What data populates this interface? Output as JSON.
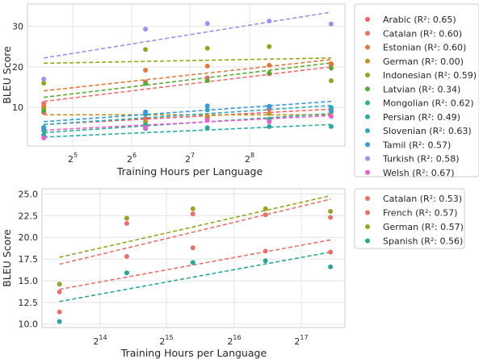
{
  "chart_data": [
    {
      "type": "scatter",
      "xlabel": "Training Hours per Language",
      "ylabel": "BLEU Score",
      "x_scale": "log2",
      "xticks": [
        "2^5",
        "2^6",
        "2^7",
        "2^8"
      ],
      "yticks": [
        10,
        20,
        30
      ],
      "xlim": [
        20,
        700
      ],
      "ylim": [
        0.5,
        35.5
      ],
      "grid": true,
      "legend_position": "outside-right",
      "x": [
        24,
        75,
        150,
        300,
        600
      ],
      "series": [
        {
          "name": "Arabic (R²: 0.65)",
          "color": "#f0606a",
          "values": [
            8.8,
            7.2,
            7.5,
            9.6,
            9.9
          ],
          "fit": [
            5.8,
            9.6
          ]
        },
        {
          "name": "Catalan (R²: 0.60)",
          "color": "#eb6f6a",
          "values": [
            11.0,
            16.3,
            17.3,
            18.3,
            20.5
          ],
          "fit": [
            11.5,
            20.0
          ]
        },
        {
          "name": "Estonian (R²: 0.60)",
          "color": "#e07a3c",
          "values": [
            10.3,
            19.2,
            20.2,
            20.4,
            20.8
          ],
          "fit": [
            14.1,
            21.8
          ]
        },
        {
          "name": "German (R²: 0.00)",
          "color": "#c0922f",
          "values": [
            9.7,
            6.5,
            7.9,
            8.5,
            8.8
          ],
          "fit": [
            8.2,
            8.2
          ]
        },
        {
          "name": "Indonesian (R²: 0.59)",
          "color": "#98a224",
          "values": [
            16.0,
            24.3,
            24.6,
            25.0,
            16.6
          ],
          "fit": [
            20.9,
            22.2
          ]
        },
        {
          "name": "Latvian (R²: 0.34)",
          "color": "#5ca836",
          "values": [
            9.2,
            15.9,
            16.6,
            18.5,
            19.7
          ],
          "fit": [
            12.5,
            21.0
          ]
        },
        {
          "name": "Mongolian (R²: 0.62)",
          "color": "#33ad8c",
          "values": [
            4.3,
            5.8,
            5.0,
            7.1,
            9.2
          ],
          "fit": [
            3.8,
            8.5
          ]
        },
        {
          "name": "Persian (R²: 0.49)",
          "color": "#31a8a2",
          "values": [
            3.2,
            4.8,
            5.0,
            5.3,
            5.3
          ],
          "fit": [
            2.7,
            5.8
          ]
        },
        {
          "name": "Slovenian (R²: 0.63)",
          "color": "#35a6ba",
          "values": [
            5.1,
            8.3,
            9.4,
            10.1,
            10.0
          ],
          "fit": [
            5.8,
            10.5
          ]
        },
        {
          "name": "Tamil (R²: 0.57)",
          "color": "#3a98d8",
          "values": [
            4.8,
            8.9,
            10.4,
            10.3,
            9.1
          ],
          "fit": [
            6.5,
            11.5
          ]
        },
        {
          "name": "Turkish (R²: 0.58)",
          "color": "#a28df0",
          "values": [
            17.0,
            29.3,
            30.7,
            31.3,
            30.6
          ],
          "fit": [
            22.2,
            33.5
          ]
        },
        {
          "name": "Welsh (R²: 0.67)",
          "color": "#e85fd3",
          "values": [
            2.5,
            5.0,
            6.9,
            6.5,
            7.8
          ],
          "fit": [
            4.4,
            8.0
          ]
        }
      ]
    },
    {
      "type": "scatter",
      "xlabel": "Training Hours per Language",
      "ylabel": "BLEU Score",
      "x_scale": "log2",
      "xticks": [
        "2^14",
        "2^15",
        "2^16",
        "2^17"
      ],
      "yticks": [
        10.0,
        12.5,
        15.0,
        17.5,
        20.0,
        22.5,
        25.0
      ],
      "xlim": [
        8300,
        210000
      ],
      "ylim": [
        9.6,
        25.6
      ],
      "grid": true,
      "legend_position": "outside-right",
      "x": [
        10000,
        20500,
        41500,
        90000,
        180000
      ],
      "series": [
        {
          "name": "Catalan (R²: 0.53)",
          "color": "#eb6f6a",
          "values": [
            11.4,
            17.8,
            18.8,
            18.4,
            18.3
          ],
          "fit": [
            14.0,
            19.7
          ]
        },
        {
          "name": "French (R²: 0.57)",
          "color": "#e8716c",
          "values": [
            13.7,
            21.6,
            22.7,
            22.6,
            22.3
          ],
          "fit": [
            16.9,
            24.4
          ]
        },
        {
          "name": "German (R²: 0.57)",
          "color": "#98a224",
          "values": [
            14.6,
            22.2,
            23.3,
            23.3,
            23.0
          ],
          "fit": [
            17.7,
            24.8
          ]
        },
        {
          "name": "Spanish (R²: 0.56)",
          "color": "#2aa597",
          "values": [
            10.3,
            15.9,
            17.1,
            17.3,
            16.6
          ],
          "fit": [
            12.6,
            18.3
          ]
        }
      ]
    }
  ]
}
